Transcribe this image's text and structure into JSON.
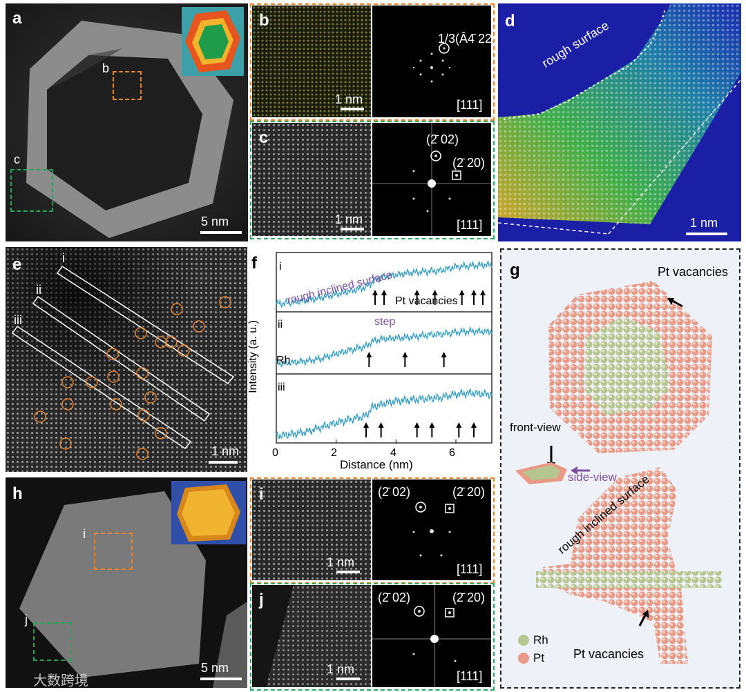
{
  "panels": {
    "a": {
      "label": "a",
      "scale": "5 nm",
      "box_b": "b",
      "box_c": "c"
    },
    "b": {
      "label": "b",
      "scale": "1 nm",
      "spot": "1/3(Ā4̄ 22)",
      "zone": "[111]"
    },
    "c": {
      "label": "c",
      "scale": "1 nm",
      "spot1": "(2̄ 02)",
      "spot2": "(2̄ 20)",
      "zone": "[111]"
    },
    "d": {
      "label": "d",
      "scale": "1 nm",
      "annotation": "rough surface"
    },
    "e": {
      "label": "e",
      "scale": "1 nm",
      "lines": [
        "i",
        "ii",
        "iii"
      ]
    },
    "f": {
      "label": "f",
      "ylabel": "Intensity (a. u.)",
      "xlabel": "Distance (nm)",
      "xticks": [
        "0",
        "2",
        "4",
        "6"
      ],
      "sub": [
        "i",
        "ii",
        "iii"
      ],
      "ann_rough": "rough inclined surface",
      "ann_vac": "Pt vacancies",
      "ann_step": "step",
      "ann_rh": "Rh"
    },
    "g": {
      "label": "g",
      "pt_vac_top": "Pt vacancies",
      "front": "front-view",
      "side": "side-view",
      "rough": "rough inclined surface",
      "pt_vac_bottom": "Pt vacancies",
      "legend_rh": "Rh",
      "legend_pt": "Pt"
    },
    "h": {
      "label": "h",
      "scale": "5 nm",
      "box_i": "i",
      "box_j": "j"
    },
    "i": {
      "label": "i",
      "scale": "1 nm",
      "spot1": "(2̄ 02)",
      "spot2": "(2̄ 20)",
      "zone": "[111]"
    },
    "j": {
      "label": "j",
      "scale": "1 nm",
      "spot1": "(2̄ 02)",
      "spot2": "(2̄ 20)",
      "zone": "[111]"
    }
  },
  "watermark": "大数跨境",
  "chart_data": {
    "type": "line",
    "title": "",
    "xlabel": "Distance (nm)",
    "ylabel": "Intensity (a. u.)",
    "xlim": [
      0,
      7.2
    ],
    "series": [
      {
        "name": "i",
        "x": [
          0,
          0.5,
          1,
          1.5,
          2,
          2.5,
          3,
          3.2,
          3.5,
          4,
          4.5,
          5,
          5.5,
          6,
          6.5,
          7
        ],
        "values": [
          0.05,
          0.08,
          0.12,
          0.18,
          0.25,
          0.32,
          0.4,
          0.5,
          0.6,
          0.65,
          0.7,
          0.72,
          0.74,
          0.82,
          0.84,
          0.86
        ]
      },
      {
        "name": "ii",
        "x": [
          0,
          0.5,
          1,
          1.5,
          2,
          2.5,
          3,
          3.2,
          3.5,
          4,
          4.5,
          5,
          5.5,
          6,
          6.5,
          7
        ],
        "values": [
          0.1,
          0.12,
          0.15,
          0.2,
          0.3,
          0.38,
          0.45,
          0.55,
          0.6,
          0.62,
          0.64,
          0.68,
          0.7,
          0.74,
          0.76,
          0.75
        ]
      },
      {
        "name": "iii",
        "x": [
          0,
          0.5,
          1,
          1.5,
          2,
          2.5,
          3,
          3.2,
          3.5,
          4,
          4.5,
          5,
          5.5,
          6,
          6.5,
          7
        ],
        "values": [
          0.05,
          0.08,
          0.12,
          0.2,
          0.28,
          0.34,
          0.4,
          0.55,
          0.6,
          0.66,
          0.68,
          0.7,
          0.72,
          0.78,
          0.8,
          0.78
        ]
      }
    ]
  }
}
